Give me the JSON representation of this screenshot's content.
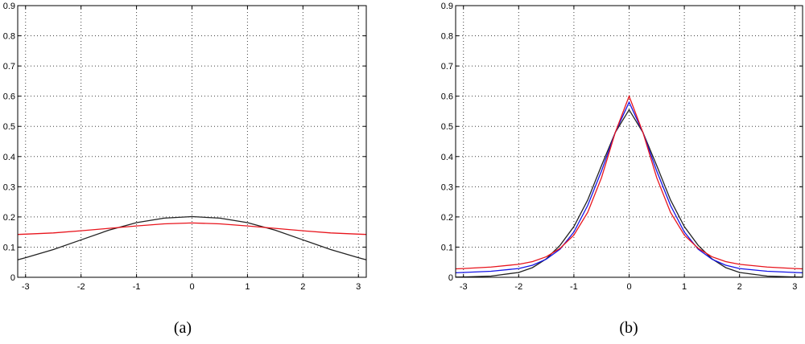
{
  "chart_data": [
    {
      "type": "line",
      "caption": "(a)",
      "xlim": [
        -3.1416,
        3.1416
      ],
      "ylim": [
        0,
        0.9
      ],
      "xticks": [
        -3,
        -2,
        -1,
        0,
        1,
        2,
        3
      ],
      "xtick_labels": [
        "-3",
        "-2",
        "-1",
        "0",
        "1",
        "2",
        "3"
      ],
      "yticks": [
        0,
        0.1,
        0.2,
        0.3,
        0.4,
        0.5,
        0.6,
        0.7,
        0.8,
        0.9
      ],
      "ytick_labels": [
        "0",
        "0.1",
        "0.2",
        "0.3",
        "0.4",
        "0.5",
        "0.6",
        "0.7",
        "0.8",
        "0.9"
      ],
      "grid": true,
      "series": [
        {
          "color": "#222222",
          "x": [
            -3.1416,
            -3,
            -2.5,
            -2,
            -1.5,
            -1,
            -0.5,
            0,
            0.5,
            1,
            1.5,
            2,
            2.5,
            3,
            3.1416
          ],
          "y": [
            0.058,
            0.065,
            0.092,
            0.124,
            0.156,
            0.181,
            0.196,
            0.201,
            0.196,
            0.181,
            0.156,
            0.124,
            0.092,
            0.065,
            0.058
          ]
        },
        {
          "color": "#e8141c",
          "x": [
            -3.1416,
            -3,
            -2.5,
            -2,
            -1.5,
            -1,
            -0.5,
            0,
            0.5,
            1,
            1.5,
            2,
            2.5,
            3,
            3.1416
          ],
          "y": [
            0.142,
            0.143,
            0.147,
            0.154,
            0.162,
            0.17,
            0.177,
            0.18,
            0.177,
            0.17,
            0.162,
            0.154,
            0.147,
            0.143,
            0.142
          ]
        }
      ]
    },
    {
      "type": "line",
      "caption": "(b)",
      "xlim": [
        -3.1416,
        3.1416
      ],
      "ylim": [
        0,
        0.9
      ],
      "xticks": [
        -3,
        -2,
        -1,
        0,
        1,
        2,
        3
      ],
      "xtick_labels": [
        "-3",
        "-2",
        "-1",
        "0",
        "1",
        "2",
        "3"
      ],
      "yticks": [
        0,
        0.1,
        0.2,
        0.3,
        0.4,
        0.5,
        0.6,
        0.7,
        0.8,
        0.9
      ],
      "ytick_labels": [
        "0",
        "0.1",
        "0.2",
        "0.3",
        "0.4",
        "0.5",
        "0.6",
        "0.7",
        "0.8",
        "0.9"
      ],
      "grid": true,
      "series": [
        {
          "color": "#222222",
          "x": [
            -3.1416,
            -3,
            -2.5,
            -2,
            -1.75,
            -1.5,
            -1.25,
            -1,
            -0.75,
            -0.5,
            -0.25,
            0,
            0.25,
            0.5,
            0.75,
            1,
            1.25,
            1.5,
            1.75,
            2,
            2.5,
            3,
            3.1416
          ],
          "y": [
            0.0005,
            0.001,
            0.004,
            0.016,
            0.032,
            0.061,
            0.106,
            0.168,
            0.256,
            0.37,
            0.48,
            0.555,
            0.48,
            0.37,
            0.256,
            0.168,
            0.106,
            0.061,
            0.032,
            0.016,
            0.004,
            0.001,
            0.0005
          ]
        },
        {
          "color": "#1414e6",
          "x": [
            -3.1416,
            -3,
            -2.5,
            -2,
            -1.75,
            -1.5,
            -1.25,
            -1,
            -0.75,
            -0.5,
            -0.25,
            0,
            0.25,
            0.5,
            0.75,
            1,
            1.25,
            1.5,
            1.75,
            2,
            2.5,
            3,
            3.1416
          ],
          "y": [
            0.015,
            0.016,
            0.02,
            0.029,
            0.04,
            0.06,
            0.093,
            0.15,
            0.238,
            0.352,
            0.48,
            0.58,
            0.48,
            0.352,
            0.238,
            0.15,
            0.093,
            0.06,
            0.04,
            0.029,
            0.02,
            0.016,
            0.015
          ]
        },
        {
          "color": "#e8141c",
          "x": [
            -3.1416,
            -3,
            -2.5,
            -2,
            -1.75,
            -1.5,
            -1.25,
            -1,
            -0.75,
            -0.5,
            -0.25,
            0,
            0.25,
            0.5,
            0.75,
            1,
            1.25,
            1.5,
            1.75,
            2,
            2.5,
            3,
            3.1416
          ],
          "y": [
            0.028,
            0.029,
            0.034,
            0.043,
            0.052,
            0.068,
            0.096,
            0.14,
            0.215,
            0.33,
            0.48,
            0.6,
            0.48,
            0.33,
            0.215,
            0.14,
            0.096,
            0.068,
            0.052,
            0.043,
            0.034,
            0.029,
            0.028
          ]
        }
      ]
    }
  ]
}
